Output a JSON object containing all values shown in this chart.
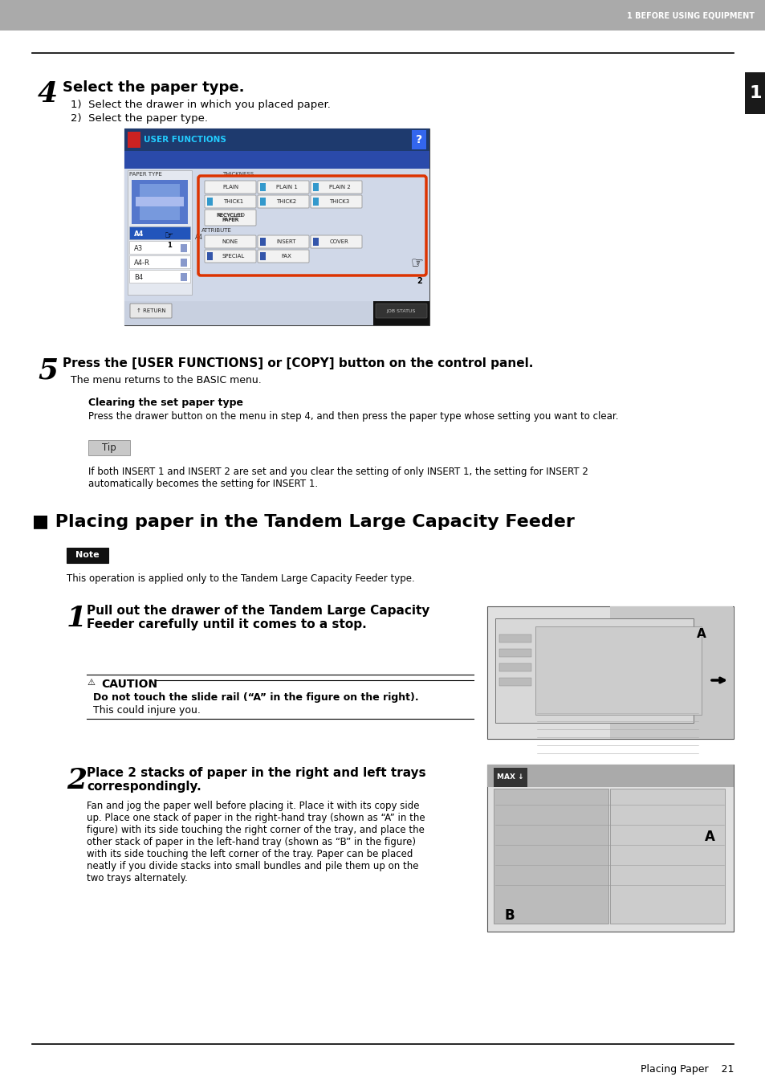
{
  "page_bg": "#ffffff",
  "header_bg": "#aaaaaa",
  "header_text": "1 BEFORE USING EQUIPMENT",
  "header_text_color": "#ffffff",
  "tab_bg": "#1a1a1a",
  "tab_text": "1",
  "tab_text_color": "#ffffff",
  "footer_text": "Placing Paper    21",
  "step4_number": "4",
  "step4_title": "Select the paper type.",
  "step4_sub1": "1)  Select the drawer in which you placed paper.",
  "step4_sub2": "2)  Select the paper type.",
  "step5_number": "5",
  "step5_title": "Press the [USER FUNCTIONS] or [COPY] button on the control panel.",
  "step5_sub": "The menu returns to the BASIC menu.",
  "clearing_title": "Clearing the set paper type",
  "clearing_body": "Press the drawer button on the menu in step 4, and then press the paper type whose setting you want to clear.",
  "tip_label": "Tip",
  "tip_body": "If both INSERT 1 and INSERT 2 are set and you clear the setting of only INSERT 1, the setting for INSERT 2\nautomatically becomes the setting for INSERT 1.",
  "section_title": "■ Placing paper in the Tandem Large Capacity Feeder",
  "note_label": "Note",
  "note_body": "This operation is applied only to the Tandem Large Capacity Feeder type.",
  "step1_number": "1",
  "step1_title": "Pull out the drawer of the Tandem Large Capacity\nFeeder carefully until it comes to a stop.",
  "caution_label": "CAUTION",
  "caution_body1": "Do not touch the slide rail (“A” in the figure on the right).",
  "caution_body2": "This could injure you.",
  "step2_number": "2",
  "step2_title": "Place 2 stacks of paper in the right and left trays\ncorrespondingly.",
  "step2_body": "Fan and jog the paper well before placing it. Place it with its copy side\nup. Place one stack of paper in the right-hand tray (shown as “A” in the\nfigure) with its side touching the right corner of the tray, and place the\nother stack of paper in the left-hand tray (shown as “B” in the figure)\nwith its side touching the left corner of the tray. Paper can be placed\nneatly if you divide stacks into small bundles and pile them up on the\ntwo trays alternately."
}
